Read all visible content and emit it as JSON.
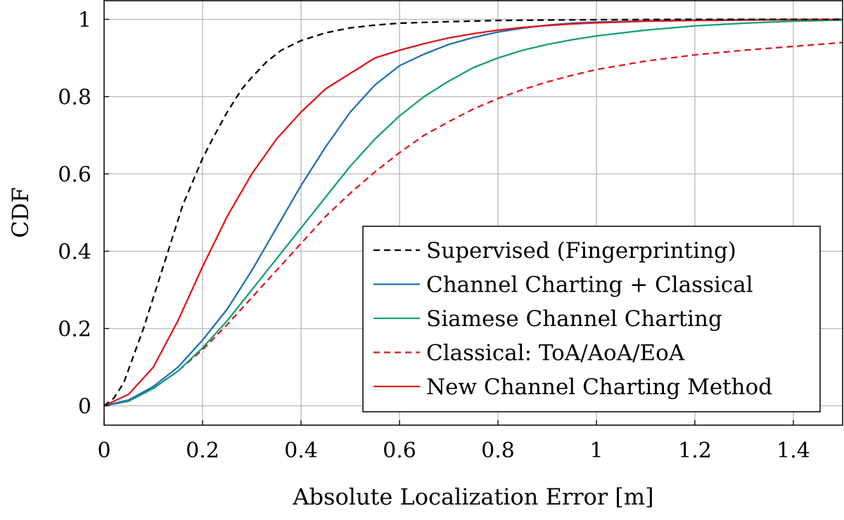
{
  "chart_data": {
    "type": "line",
    "title": "",
    "xlabel": "Absolute Localization Error [m]",
    "ylabel": "CDF",
    "xlim": [
      0,
      1.5
    ],
    "ylim": [
      -0.05,
      1.05
    ],
    "x_ticks": [
      0,
      0.2,
      0.4,
      0.6,
      0.8,
      1,
      1.2,
      1.4
    ],
    "x_tick_labels": [
      "0",
      "0.2",
      "0.4",
      "0.6",
      "0.8",
      "1",
      "1.2",
      "1.4"
    ],
    "y_ticks": [
      0,
      0.2,
      0.4,
      0.6,
      0.8,
      1
    ],
    "y_tick_labels": [
      "0",
      "0.2",
      "0.4",
      "0.6",
      "0.8",
      "1"
    ],
    "grid": true,
    "legend_position": "bottom-right",
    "series": [
      {
        "name": "Supervised (Fingerprinting)",
        "color": "#000000",
        "dashed": true,
        "x": [
          0,
          0.02,
          0.04,
          0.06,
          0.08,
          0.1,
          0.12,
          0.14,
          0.16,
          0.18,
          0.2,
          0.22,
          0.25,
          0.28,
          0.3,
          0.33,
          0.36,
          0.4,
          0.45,
          0.5,
          0.55,
          0.6,
          0.7,
          0.8,
          1.0,
          1.2,
          1.5
        ],
        "y": [
          0,
          0.02,
          0.06,
          0.13,
          0.2,
          0.28,
          0.36,
          0.44,
          0.52,
          0.58,
          0.64,
          0.69,
          0.76,
          0.82,
          0.85,
          0.89,
          0.92,
          0.945,
          0.965,
          0.978,
          0.985,
          0.99,
          0.994,
          0.997,
          0.999,
          1.0,
          1.0
        ]
      },
      {
        "name": "Channel Charting + Classical",
        "color": "#1f6fb4",
        "dashed": false,
        "x": [
          0,
          0.05,
          0.1,
          0.15,
          0.2,
          0.25,
          0.3,
          0.35,
          0.4,
          0.45,
          0.5,
          0.55,
          0.6,
          0.65,
          0.7,
          0.75,
          0.8,
          0.85,
          0.9,
          0.95,
          1.0,
          1.1,
          1.2,
          1.3,
          1.5
        ],
        "y": [
          0,
          0.015,
          0.05,
          0.1,
          0.17,
          0.25,
          0.35,
          0.46,
          0.57,
          0.67,
          0.76,
          0.83,
          0.88,
          0.91,
          0.935,
          0.953,
          0.967,
          0.977,
          0.985,
          0.99,
          0.993,
          0.996,
          0.998,
          0.999,
          1.0
        ]
      },
      {
        "name": "Siamese Channel Charting",
        "color": "#169f7a",
        "dashed": false,
        "x": [
          0,
          0.05,
          0.1,
          0.15,
          0.2,
          0.25,
          0.3,
          0.35,
          0.4,
          0.45,
          0.5,
          0.55,
          0.6,
          0.65,
          0.7,
          0.75,
          0.8,
          0.85,
          0.9,
          0.95,
          1.0,
          1.1,
          1.2,
          1.3,
          1.4,
          1.5
        ],
        "y": [
          0,
          0.012,
          0.045,
          0.09,
          0.15,
          0.22,
          0.3,
          0.38,
          0.46,
          0.54,
          0.62,
          0.69,
          0.75,
          0.8,
          0.84,
          0.875,
          0.9,
          0.92,
          0.935,
          0.947,
          0.957,
          0.972,
          0.983,
          0.99,
          0.995,
          0.998
        ]
      },
      {
        "name": "Classical: ToA/AoA/EoA",
        "color": "#e0161b",
        "dashed": true,
        "x": [
          0,
          0.05,
          0.1,
          0.15,
          0.2,
          0.25,
          0.3,
          0.35,
          0.4,
          0.45,
          0.5,
          0.55,
          0.6,
          0.65,
          0.7,
          0.75,
          0.8,
          0.85,
          0.9,
          0.95,
          1.0,
          1.1,
          1.2,
          1.3,
          1.4,
          1.5
        ],
        "y": [
          0,
          0.012,
          0.045,
          0.09,
          0.145,
          0.21,
          0.28,
          0.35,
          0.42,
          0.49,
          0.55,
          0.605,
          0.655,
          0.7,
          0.735,
          0.768,
          0.795,
          0.818,
          0.838,
          0.855,
          0.87,
          0.892,
          0.908,
          0.92,
          0.93,
          0.94
        ]
      },
      {
        "name": "New Channel Charting Method",
        "color": "#e0161b",
        "dashed": false,
        "x": [
          0,
          0.05,
          0.1,
          0.15,
          0.2,
          0.25,
          0.3,
          0.35,
          0.4,
          0.45,
          0.5,
          0.55,
          0.6,
          0.65,
          0.7,
          0.75,
          0.8,
          0.85,
          0.9,
          0.95,
          1.0,
          1.1,
          1.2,
          1.3,
          1.5
        ],
        "y": [
          0,
          0.03,
          0.1,
          0.22,
          0.36,
          0.49,
          0.6,
          0.69,
          0.76,
          0.82,
          0.86,
          0.9,
          0.92,
          0.937,
          0.952,
          0.963,
          0.972,
          0.979,
          0.984,
          0.988,
          0.991,
          0.995,
          0.997,
          0.998,
          1.0
        ]
      }
    ]
  }
}
